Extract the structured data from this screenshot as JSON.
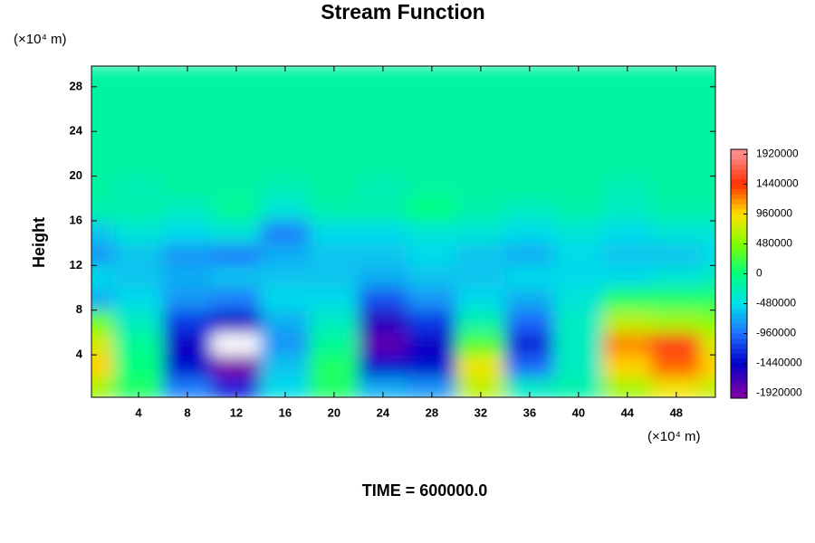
{
  "chart_data": {
    "type": "contour",
    "title": "Stream Function",
    "ylabel": "Height",
    "xunit": "(×10⁴ m)",
    "yunit": "(×10⁴ m)",
    "time_label": "TIME = 600000.0",
    "xlim": [
      0.15,
      51.2
    ],
    "ylim": [
      0.2,
      29.85
    ],
    "xticks": [
      4,
      8,
      12,
      16,
      20,
      24,
      28,
      32,
      36,
      40,
      44,
      48
    ],
    "yticks": [
      4,
      8,
      12,
      16,
      20,
      24,
      28
    ],
    "x": [
      0,
      4,
      8,
      12,
      16,
      20,
      24,
      28,
      32,
      36,
      40,
      44,
      48,
      52
    ],
    "y": [
      1,
      3,
      5,
      7,
      9,
      11,
      13,
      15,
      17,
      19,
      21,
      23,
      25,
      27,
      29
    ],
    "z": [
      [
        600000,
        100000,
        -900000,
        -1300000,
        -500000,
        100000,
        -700000,
        -800000,
        700000,
        -300000,
        -200000,
        600000,
        900000,
        700000
      ],
      [
        1000000,
        0,
        -1400000,
        -2000000,
        -600000,
        100000,
        -1400000,
        -1400000,
        900000,
        -1000000,
        -300000,
        1000000,
        1300000,
        1000000
      ],
      [
        800000,
        -100000,
        -1500000,
        -2100000,
        -800000,
        -100000,
        -1800000,
        -1500000,
        300000,
        -1300000,
        -300000,
        1200000,
        1500000,
        800000
      ],
      [
        400000,
        -300000,
        -1200000,
        -1500000,
        -700000,
        -300000,
        -1600000,
        -1200000,
        -200000,
        -1000000,
        -300000,
        700000,
        600000,
        500000
      ],
      [
        -700000,
        -500000,
        -800000,
        -900000,
        -500000,
        -500000,
        -1100000,
        -800000,
        -500000,
        -700000,
        -400000,
        100000,
        100000,
        100000
      ],
      [
        -500000,
        -600000,
        -700000,
        -600000,
        -600000,
        -600000,
        -700000,
        -600000,
        -600000,
        -500000,
        -500000,
        -500000,
        -400000,
        -300000
      ],
      [
        -800000,
        -600000,
        -800000,
        -900000,
        -700000,
        -600000,
        -600000,
        -500000,
        -600000,
        -700000,
        -500000,
        -600000,
        -600000,
        -500000
      ],
      [
        -600000,
        -400000,
        -500000,
        -400000,
        -900000,
        -500000,
        -500000,
        -400000,
        -400000,
        -500000,
        -400000,
        -500000,
        -400000,
        -400000
      ],
      [
        -200000,
        -200000,
        -300000,
        -100000,
        -400000,
        -200000,
        -200000,
        0,
        -200000,
        -300000,
        -200000,
        -300000,
        -200000,
        -200000
      ],
      [
        -150000,
        -250000,
        -150000,
        -150000,
        -250000,
        -150000,
        -250000,
        -150000,
        -150000,
        -150000,
        -150000,
        -250000,
        -150000,
        -150000
      ],
      [
        -150000,
        -150000,
        -150000,
        -150000,
        -150000,
        -150000,
        -150000,
        -150000,
        -150000,
        -150000,
        -150000,
        -150000,
        -150000,
        -150000
      ],
      [
        -150000,
        -150000,
        -150000,
        -150000,
        -150000,
        -150000,
        -150000,
        -150000,
        -150000,
        -150000,
        -150000,
        -150000,
        -150000,
        -150000
      ],
      [
        -150000,
        -150000,
        -150000,
        -150000,
        -150000,
        -150000,
        -150000,
        -150000,
        -150000,
        -150000,
        -150000,
        -150000,
        -150000,
        -150000
      ],
      [
        -150000,
        -150000,
        -150000,
        -150000,
        -150000,
        -150000,
        -150000,
        -150000,
        -150000,
        -150000,
        -150000,
        -150000,
        -150000,
        -150000
      ],
      [
        -150000,
        -150000,
        -150000,
        -150000,
        -150000,
        -150000,
        -150000,
        -150000,
        -150000,
        -150000,
        -150000,
        -150000,
        -150000,
        -150000
      ]
    ],
    "clim": [
      -2000000,
      2000000
    ],
    "cticks": [
      -1920000,
      -1440000,
      -960000,
      -480000,
      0,
      480000,
      960000,
      1440000,
      1920000
    ],
    "colormap": [
      "#7a00a8",
      "#0000c8",
      "#2070ff",
      "#00e0e8",
      "#00ff80",
      "#80ff00",
      "#ffe000",
      "#ff3000",
      "#ff8c8c"
    ],
    "under_color": "#ffffff"
  }
}
